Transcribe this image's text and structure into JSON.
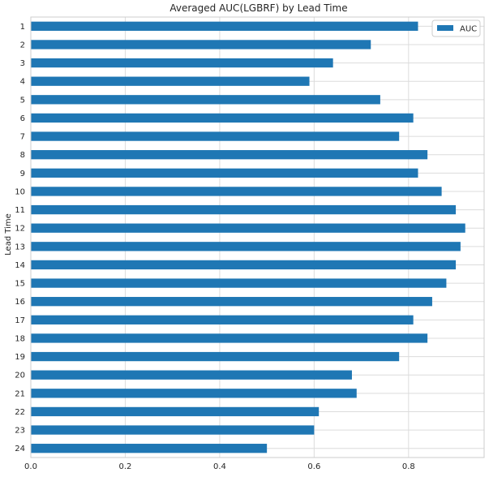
{
  "chart_data": {
    "type": "bar",
    "orientation": "horizontal",
    "title": "Averaged AUC(LGBRF) by Lead Time",
    "xlabel": "",
    "ylabel": "Lead Time",
    "categories": [
      "1",
      "2",
      "3",
      "4",
      "5",
      "6",
      "7",
      "8",
      "9",
      "10",
      "11",
      "12",
      "13",
      "14",
      "15",
      "16",
      "17",
      "18",
      "19",
      "20",
      "21",
      "22",
      "23",
      "24"
    ],
    "series": [
      {
        "name": "AUC",
        "color": "#1f77b4",
        "values": [
          0.82,
          0.72,
          0.64,
          0.59,
          0.74,
          0.81,
          0.78,
          0.84,
          0.82,
          0.87,
          0.9,
          0.92,
          0.91,
          0.9,
          0.88,
          0.85,
          0.81,
          0.84,
          0.78,
          0.68,
          0.69,
          0.61,
          0.6,
          0.5
        ]
      }
    ],
    "xlim": [
      0,
      0.96
    ],
    "xticks": [
      0.0,
      0.2,
      0.4,
      0.6,
      0.8
    ],
    "xtick_labels": [
      "0.0",
      "0.2",
      "0.4",
      "0.6",
      "0.8"
    ],
    "grid": true,
    "legend_position": "top-right",
    "y_inverted": true
  }
}
